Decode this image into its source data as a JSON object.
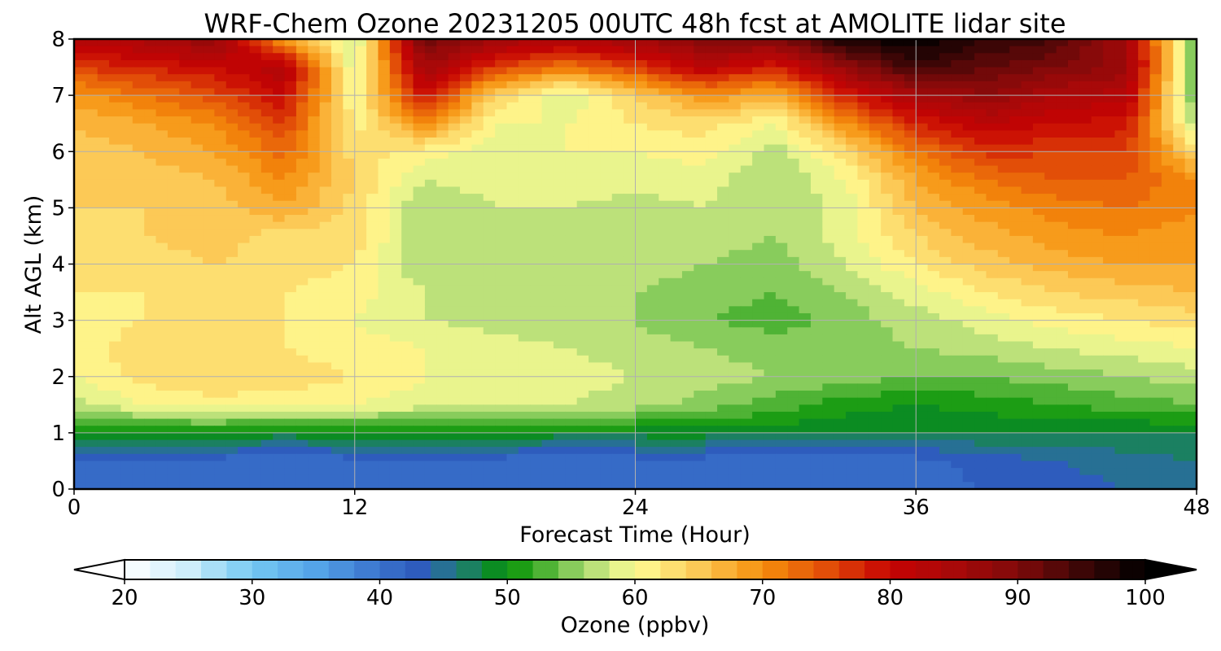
{
  "chart_data": {
    "type": "heatmap",
    "title": "WRF-Chem Ozone  20231205 00UTC 48h fcst at AMOLITE lidar site",
    "xlabel": "Forecast Time (Hour)",
    "ylabel": "Alt AGL (km)",
    "xlim": [
      0,
      48
    ],
    "ylim": [
      0,
      8
    ],
    "x_ticks": [
      0,
      12,
      24,
      36,
      48
    ],
    "y_ticks": [
      0,
      1,
      2,
      3,
      4,
      5,
      6,
      7,
      8
    ],
    "grid": true,
    "x": [
      0,
      3,
      6,
      9,
      12,
      15,
      18,
      21,
      24,
      27,
      30,
      33,
      36,
      39,
      42,
      45,
      48
    ],
    "y": [
      0,
      0.5,
      1.0,
      1.5,
      2,
      2.5,
      3,
      3.5,
      4,
      4.5,
      5,
      5.5,
      6,
      6.5,
      7,
      7.5,
      8
    ],
    "z": [
      [
        41,
        40,
        41,
        41,
        40,
        41,
        41,
        40,
        41,
        42,
        41,
        40,
        41,
        42,
        43,
        44,
        45
      ],
      [
        41,
        41,
        41,
        40,
        41,
        41,
        41,
        40,
        41,
        41,
        40,
        40,
        41,
        43,
        44,
        45,
        46
      ],
      [
        49,
        50,
        50,
        49,
        50,
        50,
        50,
        49,
        49,
        49,
        49,
        48,
        48,
        48,
        48,
        48,
        48
      ],
      [
        57,
        60,
        61,
        61,
        60,
        59,
        59,
        58,
        57,
        55,
        53,
        51,
        50,
        51,
        52,
        53,
        54
      ],
      [
        60,
        63,
        64,
        63,
        62,
        60,
        59,
        59,
        58,
        57,
        56,
        55,
        54,
        54,
        55,
        56,
        57
      ],
      [
        61,
        63,
        63,
        62,
        61,
        60,
        59,
        58,
        57,
        56,
        55,
        55,
        56,
        57,
        58,
        59,
        60
      ],
      [
        61,
        62,
        62,
        62,
        60,
        58,
        57,
        57,
        56,
        54,
        53,
        55,
        57,
        59,
        61,
        62,
        63
      ],
      [
        62,
        62,
        63,
        62,
        61,
        58,
        57,
        57,
        56,
        55,
        54,
        56,
        59,
        62,
        64,
        65,
        66
      ],
      [
        63,
        63,
        64,
        63,
        62,
        56,
        56,
        58,
        57,
        56,
        55,
        58,
        62,
        65,
        67,
        68,
        68
      ],
      [
        63,
        64,
        65,
        63,
        63,
        56,
        57,
        58,
        58,
        57,
        56,
        59,
        64,
        67,
        69,
        70,
        69
      ],
      [
        64,
        64,
        65,
        68,
        63,
        56,
        58,
        58,
        57,
        58,
        56,
        59,
        66,
        69,
        71,
        72,
        70
      ],
      [
        64,
        65,
        66,
        70,
        64,
        58,
        59,
        59,
        59,
        59,
        56,
        60,
        68,
        72,
        74,
        74,
        70
      ],
      [
        65,
        66,
        68,
        73,
        63,
        61,
        59,
        60,
        60,
        61,
        57,
        63,
        72,
        77,
        76,
        76,
        63
      ],
      [
        66,
        68,
        70,
        76,
        61,
        70,
        60,
        60,
        62,
        63,
        60,
        70,
        78,
        82,
        80,
        79,
        56
      ],
      [
        69,
        72,
        75,
        80,
        60,
        80,
        64,
        58,
        64,
        70,
        67,
        78,
        85,
        88,
        84,
        83,
        53
      ],
      [
        76,
        78,
        80,
        84,
        58,
        86,
        76,
        72,
        76,
        82,
        78,
        88,
        95,
        92,
        90,
        87,
        52
      ],
      [
        83,
        85,
        88,
        68,
        57,
        92,
        86,
        84,
        86,
        90,
        90,
        98,
        100,
        96,
        94,
        86,
        52
      ]
    ],
    "colorbar": {
      "label": "Ozone  (ppbv)",
      "min": 20,
      "max": 100,
      "ticks": [
        20,
        30,
        40,
        50,
        60,
        70,
        80,
        90,
        100
      ],
      "extend": "both",
      "stops": [
        {
          "v": 20,
          "c": "#ffffff"
        },
        {
          "v": 25,
          "c": "#cdeefb"
        },
        {
          "v": 30,
          "c": "#74c8f2"
        },
        {
          "v": 35,
          "c": "#54a4e8"
        },
        {
          "v": 40,
          "c": "#3a72cc"
        },
        {
          "v": 43,
          "c": "#2e5cbd"
        },
        {
          "v": 46,
          "c": "#237a80"
        },
        {
          "v": 50,
          "c": "#039203"
        },
        {
          "v": 53,
          "c": "#4fb335"
        },
        {
          "v": 56,
          "c": "#a5d870"
        },
        {
          "v": 60,
          "c": "#fffd96"
        },
        {
          "v": 65,
          "c": "#fcc956"
        },
        {
          "v": 70,
          "c": "#f68f0c"
        },
        {
          "v": 75,
          "c": "#e24e08"
        },
        {
          "v": 80,
          "c": "#c60303"
        },
        {
          "v": 85,
          "c": "#a80909"
        },
        {
          "v": 90,
          "c": "#800a0a"
        },
        {
          "v": 95,
          "c": "#3c0606"
        },
        {
          "v": 100,
          "c": "#000000"
        }
      ]
    }
  }
}
